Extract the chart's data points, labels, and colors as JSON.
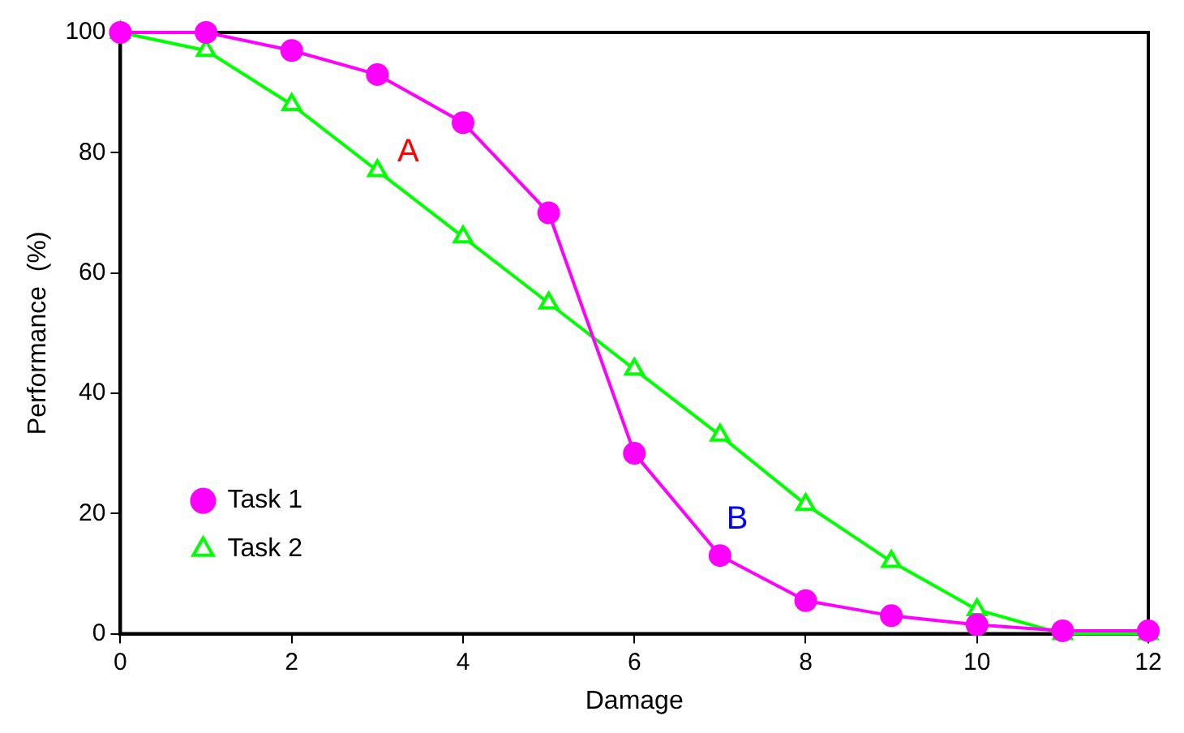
{
  "chart_data": {
    "type": "line",
    "xlabel": "Damage",
    "ylabel": "Performance  (%)",
    "x": [
      0,
      1,
      2,
      3,
      4,
      5,
      6,
      7,
      8,
      9,
      10,
      11,
      12
    ],
    "series": [
      {
        "name": "Task 1",
        "color": "#ff00ff",
        "marker": "circle",
        "values": [
          100,
          100,
          97,
          93,
          85,
          70,
          30,
          13,
          5.5,
          3,
          1.5,
          0.5,
          0.5
        ]
      },
      {
        "name": "Task 2",
        "color": "#00ff00",
        "marker": "triangle",
        "values": [
          100,
          97,
          88,
          77,
          66,
          55,
          44,
          33,
          21.5,
          12,
          4,
          0,
          0
        ]
      }
    ],
    "xlim": [
      0,
      12
    ],
    "xticks": [
      0,
      2,
      4,
      6,
      8,
      10,
      12
    ],
    "ylim": [
      0,
      100
    ],
    "yticks": [
      0,
      20,
      40,
      60,
      80,
      100
    ],
    "grid": false,
    "legend": "bottom left",
    "line_style": "solid",
    "annotations": [
      "A",
      "B"
    ]
  }
}
